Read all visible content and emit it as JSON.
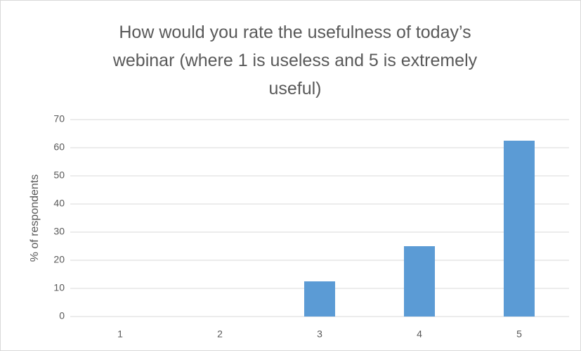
{
  "chart_data": {
    "type": "bar",
    "title": "How would you rate the usefulness of today’s\nwebinar (where 1 is useless and 5 is extremely\nuseful)",
    "y_label": "% of respondents",
    "categories": [
      "1",
      "2",
      "3",
      "4",
      "5"
    ],
    "values": [
      0,
      0,
      12.5,
      25,
      62.5
    ],
    "color": "#5b9bd5",
    "ylim": [
      0,
      70
    ],
    "yticks": [
      0,
      10,
      20,
      30,
      40,
      50,
      60,
      70
    ],
    "grid": true
  }
}
